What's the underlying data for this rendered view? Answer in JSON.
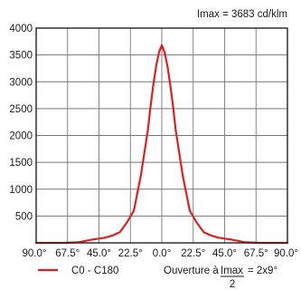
{
  "chart_data": {
    "type": "line",
    "title": "",
    "annotation_top": "Imax = 3683 cd/klm",
    "xlabel": "",
    "ylabel": "",
    "x_ticks": [
      "90.0°",
      "67.5°",
      "45.0°",
      "22.5°",
      "0.0°",
      "22.5°",
      "45.0°",
      "67.5°",
      "90.0°"
    ],
    "y_ticks": [
      "500",
      "1000",
      "1500",
      "2000",
      "2500",
      "3000",
      "3500",
      "4000"
    ],
    "xlim": [
      -90,
      90
    ],
    "ylim": [
      0,
      4000
    ],
    "grid": true,
    "series": [
      {
        "name": "C0 - C180",
        "color": "#e02020",
        "x": [
          -90,
          -70,
          -60,
          -50,
          -45,
          -40,
          -35,
          -30,
          -25,
          -20,
          -15,
          -10,
          -8,
          -6,
          -4,
          -2,
          0,
          2,
          4,
          6,
          8,
          10,
          15,
          20,
          25,
          30,
          35,
          40,
          45,
          50,
          60,
          70,
          90
        ],
        "y": [
          0,
          0,
          10,
          60,
          80,
          100,
          140,
          200,
          380,
          600,
          1250,
          2100,
          2550,
          2950,
          3300,
          3550,
          3683,
          3550,
          3300,
          2950,
          2550,
          2100,
          1250,
          600,
          380,
          200,
          140,
          100,
          80,
          60,
          10,
          0,
          0
        ]
      }
    ],
    "legend": {
      "placement": "bottom-left"
    },
    "beam": {
      "prefix": "Ouverture à",
      "frac_num": "Imax",
      "frac_den": "2",
      "value": "= 2x9°"
    }
  }
}
